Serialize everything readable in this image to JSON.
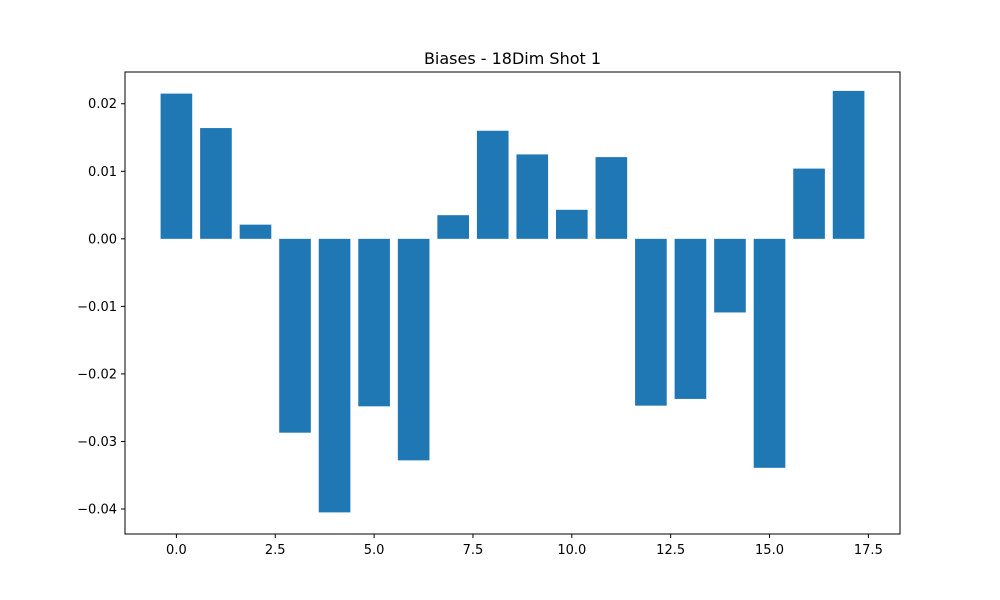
{
  "chart_data": {
    "type": "bar",
    "title": "Biases - 18Dim Shot 1",
    "xlabel": "",
    "ylabel": "",
    "x": [
      0,
      1,
      2,
      3,
      4,
      5,
      6,
      7,
      8,
      9,
      10,
      11,
      12,
      13,
      14,
      15,
      16,
      17
    ],
    "values": [
      0.0215,
      0.0164,
      0.0021,
      -0.0287,
      -0.0405,
      -0.0248,
      -0.0328,
      0.0035,
      0.016,
      0.0125,
      0.0043,
      0.0121,
      -0.0247,
      -0.0237,
      -0.0109,
      -0.0339,
      0.0104,
      0.0219
    ],
    "xlim": [
      -1.3,
      18.3
    ],
    "ylim": [
      -0.0437,
      0.0247
    ],
    "xticks": [
      0.0,
      2.5,
      5.0,
      7.5,
      10.0,
      12.5,
      15.0,
      17.5
    ],
    "xtick_labels": [
      "0.0",
      "2.5",
      "5.0",
      "7.5",
      "10.0",
      "12.5",
      "15.0",
      "17.5"
    ],
    "yticks": [
      -0.04,
      -0.03,
      -0.02,
      -0.01,
      0.0,
      0.01,
      0.02
    ],
    "ytick_labels": [
      "−0.04",
      "−0.03",
      "−0.02",
      "−0.01",
      "0.00",
      "0.01",
      "0.02"
    ],
    "bar_width": 0.8,
    "bar_color": "#1f77b4",
    "grid": false,
    "legend": "none"
  }
}
